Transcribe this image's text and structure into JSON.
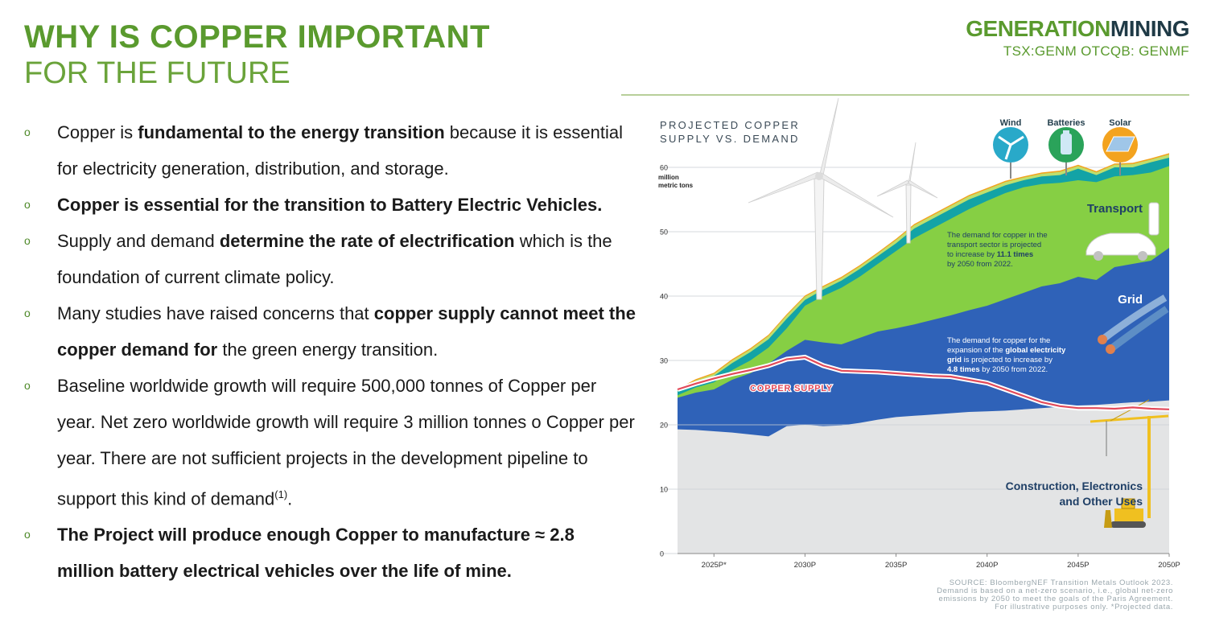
{
  "header": {
    "title_line1": "WHY IS COPPER IMPORTANT",
    "title_line2": "FOR THE FUTURE",
    "brand_part1": "GENERATION",
    "brand_part2": "MINING",
    "ticker": "TSX:GENM OTCQB: GENMF"
  },
  "bullets": [
    {
      "segments": [
        {
          "text": "Copper is ",
          "bold": false
        },
        {
          "text": "fundamental to the energy transition",
          "bold": true
        },
        {
          "text": " because it is essential for electricity generation, distribution, and storage.",
          "bold": false
        }
      ]
    },
    {
      "segments": [
        {
          "text": "Copper is essential for the transition to Battery Electric Vehicles.",
          "bold": true
        }
      ]
    },
    {
      "segments": [
        {
          "text": "Supply and demand ",
          "bold": false
        },
        {
          "text": "determine the rate of electrification",
          "bold": true
        },
        {
          "text": " which is the foundation of current climate policy.",
          "bold": false
        }
      ]
    },
    {
      "segments": [
        {
          "text": "Many studies have raised concerns that ",
          "bold": false
        },
        {
          "text": "copper supply cannot meet the copper demand for",
          "bold": true
        },
        {
          "text": " the green energy transition.",
          "bold": false
        }
      ]
    },
    {
      "segments": [
        {
          "text": "Baseline worldwide growth will require 500,000 tonnes of Copper per year. Net zero worldwide growth will require 3 million tonnes o Copper per year.  There are not sufficient projects in the development pipeline to support this kind of demand",
          "bold": false
        },
        {
          "text": "(1)",
          "bold": false,
          "sup": true
        },
        {
          "text": ".",
          "bold": false
        }
      ]
    },
    {
      "segments": [
        {
          "text": "The Project will produce enough Copper to manufacture ≈ 2.8 million battery electrical vehicles over the life of mine.",
          "bold": true
        }
      ]
    }
  ],
  "chart_data": {
    "type": "area",
    "title_line1": "PROJECTED COPPER",
    "title_line2": "SUPPLY VS. DEMAND",
    "y_unit_line1": "million",
    "y_unit_line2": "metric tons",
    "ylim": [
      0,
      60
    ],
    "yticks": [
      0,
      10,
      20,
      30,
      40,
      50,
      60
    ],
    "xlim": [
      2023,
      2050
    ],
    "xticks": [
      {
        "value": 2025,
        "label": "2025P*"
      },
      {
        "value": 2030,
        "label": "2030P"
      },
      {
        "value": 2035,
        "label": "2035P"
      },
      {
        "value": 2040,
        "label": "2040P"
      },
      {
        "value": 2045,
        "label": "2045P"
      },
      {
        "value": 2050,
        "label": "2050P"
      }
    ],
    "x": [
      2023,
      2024,
      2025,
      2026,
      2027,
      2028,
      2029,
      2030,
      2031,
      2032,
      2033,
      2034,
      2035,
      2036,
      2037,
      2038,
      2039,
      2040,
      2041,
      2042,
      2043,
      2044,
      2045,
      2046,
      2047,
      2048,
      2049,
      2050
    ],
    "series": [
      {
        "name": "Construction, Electronics and Other Uses",
        "color": "#e3e4e5",
        "values": [
          19.3,
          19.2,
          19.0,
          18.8,
          18.5,
          18.2,
          19.8,
          20.0,
          19.8,
          19.9,
          20.3,
          20.8,
          21.2,
          21.4,
          21.6,
          21.8,
          22.0,
          22.1,
          22.2,
          22.4,
          22.6,
          22.8,
          23.0,
          23.1,
          23.3,
          23.5,
          23.6,
          23.8
        ]
      },
      {
        "name": "Grid",
        "color": "#2f62b8",
        "values": [
          24.2,
          25.0,
          25.5,
          27.0,
          28.0,
          29.5,
          31.5,
          33.2,
          32.8,
          32.5,
          33.5,
          34.5,
          35.0,
          35.6,
          36.3,
          37.0,
          37.8,
          38.5,
          39.5,
          40.5,
          41.5,
          42.0,
          43.0,
          42.5,
          44.5,
          45.0,
          45.5,
          47.5
        ]
      },
      {
        "name": "Transport",
        "color": "#86cf44",
        "values": [
          24.6,
          25.8,
          26.6,
          28.5,
          30.0,
          32.0,
          35.0,
          38.5,
          40.0,
          41.3,
          43.0,
          45.0,
          47.0,
          49.0,
          50.5,
          52.0,
          53.5,
          54.8,
          56.0,
          56.9,
          57.4,
          57.6,
          58.0,
          57.7,
          58.6,
          58.8,
          59.2,
          60.2
        ]
      },
      {
        "name": "Wind",
        "color": "#13a3a6",
        "values": [
          25.2,
          26.6,
          27.6,
          29.6,
          31.3,
          33.3,
          36.5,
          39.4,
          41.0,
          42.4,
          44.2,
          46.2,
          48.2,
          50.5,
          52.0,
          53.5,
          55.0,
          56.1,
          57.2,
          58.0,
          58.6,
          58.8,
          59.8,
          58.8,
          60.0,
          60.0,
          60.8,
          61.5
        ]
      },
      {
        "name": "Batteries",
        "color": "#bedf6e",
        "values": [
          25.4,
          26.9,
          27.9,
          30.0,
          31.7,
          33.8,
          37.0,
          39.9,
          41.4,
          42.8,
          44.6,
          46.6,
          48.7,
          51.0,
          52.5,
          54.0,
          55.5,
          56.6,
          57.7,
          58.4,
          59.0,
          59.3,
          60.2,
          59.2,
          60.4,
          60.5,
          61.2,
          62.0
        ]
      },
      {
        "name": "Solar",
        "color": "#f3a31f",
        "values": [
          25.6,
          27.1,
          28.1,
          30.2,
          31.9,
          34.0,
          37.2,
          40.1,
          41.6,
          43.0,
          44.8,
          46.8,
          48.9,
          51.2,
          52.7,
          54.2,
          55.7,
          56.8,
          57.9,
          58.6,
          59.2,
          59.5,
          60.4,
          59.4,
          60.6,
          60.7,
          61.4,
          62.2
        ]
      }
    ],
    "supply": {
      "name": "COPPER SUPPLY",
      "color": "#e24a5a",
      "values": [
        25.5,
        26.4,
        27.2,
        27.9,
        28.5,
        29.2,
        30.2,
        30.5,
        29.2,
        28.4,
        28.3,
        28.2,
        28.0,
        27.8,
        27.6,
        27.5,
        27.0,
        26.5,
        25.5,
        24.5,
        23.5,
        22.9,
        22.6,
        22.6,
        22.5,
        22.7,
        22.5,
        22.4
      ]
    },
    "annotations": {
      "transport_label": "Transport",
      "transport_text": [
        "The demand for copper in the",
        "transport sector is projected",
        "to increase by ",
        "11.1 times",
        "by 2050 from 2022."
      ],
      "grid_label": "Grid",
      "grid_text": [
        "The demand for copper for the",
        "expansion of the ",
        "global electricity",
        "grid",
        " is projected to increase by",
        "4.8 times",
        " by 2050 from 2022."
      ],
      "construction_label_line1": "Construction, Electronics",
      "construction_label_line2": "and Other Uses",
      "wind_label": "Wind",
      "batteries_label": "Batteries",
      "solar_label": "Solar"
    },
    "source": [
      "SOURCE: BloombergNEF Transition Metals Outlook 2023.",
      "Demand is based on a net-zero scenario, i.e., global net-zero",
      "emissions by 2050 to meet the goals of the Paris Agreement.",
      "For illustrative purposes only. *Projected data."
    ]
  }
}
